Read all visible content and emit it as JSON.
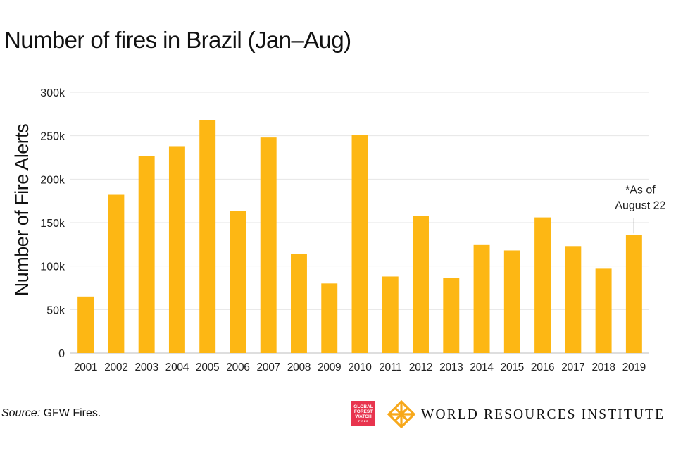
{
  "chart_data": {
    "type": "bar",
    "title": "Number of fires in Brazil (Jan–Aug)",
    "ylabel": "Number of Fire Alerts",
    "xlabel": "",
    "ylim": [
      0,
      300000
    ],
    "y_ticks": [
      {
        "value": 0,
        "label": "0"
      },
      {
        "value": 50000,
        "label": "50k"
      },
      {
        "value": 100000,
        "label": "100k"
      },
      {
        "value": 150000,
        "label": "150k"
      },
      {
        "value": 200000,
        "label": "200k"
      },
      {
        "value": 250000,
        "label": "250k"
      },
      {
        "value": 300000,
        "label": "300k"
      }
    ],
    "grid": true,
    "bar_color": "#fdb714",
    "categories": [
      "2001",
      "2002",
      "2003",
      "2004",
      "2005",
      "2006",
      "2007",
      "2008",
      "2009",
      "2010",
      "2011",
      "2012",
      "2013",
      "2014",
      "2015",
      "2016",
      "2017",
      "2018",
      "2019"
    ],
    "values": [
      65000,
      182000,
      227000,
      238000,
      268000,
      163000,
      248000,
      114000,
      80000,
      251000,
      88000,
      158000,
      86000,
      125000,
      118000,
      156000,
      123000,
      97000,
      136000
    ],
    "annotation": {
      "category": "2019",
      "lines": [
        "*As of",
        "August 22"
      ]
    }
  },
  "footer": {
    "source_lead": "Source:",
    "source_text": " GFW Fires.",
    "gfw_logo_lines": [
      "GLOBAL",
      "FOREST",
      "WATCH",
      "FIRES"
    ],
    "org_name": "WORLD RESOURCES INSTITUTE",
    "brand_colors": {
      "gfw": "#e8344e",
      "wri": "#f7a81b"
    }
  }
}
